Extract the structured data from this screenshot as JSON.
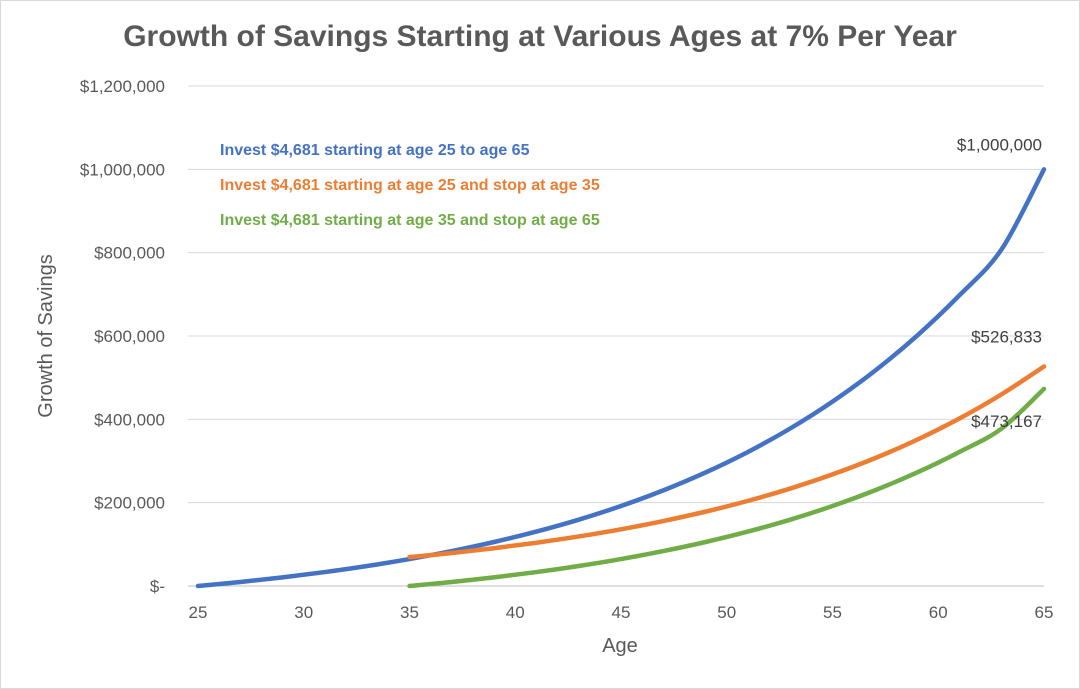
{
  "chart_data": {
    "type": "line",
    "title": "Growth of Savings Starting at Various Ages at 7% Per Year",
    "xlabel": "Age",
    "ylabel": "Growth of Savings",
    "xlim": [
      25,
      65
    ],
    "ylim": [
      0,
      1200000
    ],
    "x_ticks": [
      "25",
      "30",
      "35",
      "40",
      "45",
      "50",
      "55",
      "60",
      "65"
    ],
    "y_ticks": [
      "$-",
      "$200,000",
      "$400,000",
      "$600,000",
      "$800,000",
      "$1,000,000",
      "$1,200,000"
    ],
    "grid": "horizontal",
    "legend_position": "top-left",
    "series": [
      {
        "name": "Invest $4,681 starting at age 25 to age 65",
        "color": "#4472c4",
        "x": [
          25,
          27,
          29,
          31,
          33,
          35,
          37,
          39,
          41,
          43,
          45,
          47,
          49,
          51,
          53,
          55,
          57,
          59,
          61,
          63,
          65
        ],
        "values": [
          0,
          9690,
          20780,
          33490,
          48040,
          64700,
          83770,
          105600,
          130600,
          159200,
          192000,
          229500,
          272500,
          321700,
          378000,
          442500,
          516300,
          600800,
          697600,
          808400,
          1000000
        ]
      },
      {
        "name": "Invest $4,681 starting at age 25 and stop at age 35",
        "color": "#ed7d31",
        "x": [
          35,
          37,
          39,
          41,
          43,
          45,
          47,
          49,
          51,
          53,
          55,
          57,
          59,
          61,
          63,
          65
        ],
        "values": [
          69200,
          79200,
          90700,
          103900,
          118900,
          136100,
          155900,
          178500,
          204300,
          233900,
          267800,
          306600,
          351000,
          401900,
          460200,
          526833
        ]
      },
      {
        "name": "Invest $4,681 starting at age 35 and stop at age 65",
        "color": "#70ad47",
        "x": [
          35,
          37,
          39,
          41,
          43,
          45,
          47,
          49,
          51,
          53,
          55,
          57,
          59,
          61,
          63,
          65
        ],
        "values": [
          0,
          9690,
          20780,
          33490,
          48040,
          64700,
          83770,
          105600,
          130600,
          159200,
          192000,
          229500,
          272500,
          321700,
          378000,
          473167
        ]
      }
    ],
    "annotations": [
      {
        "text": "$1,000,000",
        "x": 65,
        "y": 1000000
      },
      {
        "text": "$526,833",
        "x": 65,
        "y": 526833
      },
      {
        "text": "$473,167",
        "x": 65,
        "y": 473167
      }
    ]
  }
}
